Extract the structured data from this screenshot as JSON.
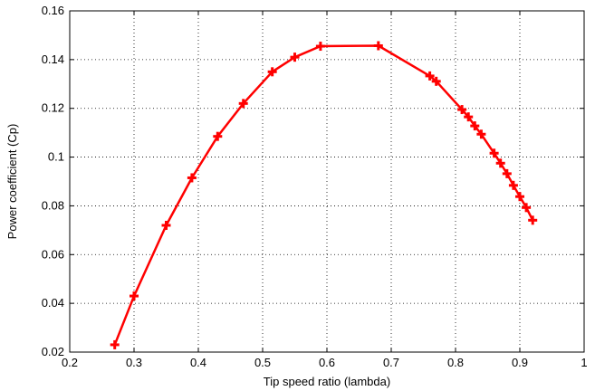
{
  "chart_data": {
    "type": "line",
    "xlabel": "Tip speed ratio  (lambda)",
    "ylabel": "Power coefficient  (Cp)",
    "xlim": [
      0.2,
      1
    ],
    "ylim": [
      0.02,
      0.16
    ],
    "xticks": [
      0.2,
      0.3,
      0.4,
      0.5,
      0.6,
      0.7,
      0.8,
      0.9,
      1
    ],
    "yticks": [
      0.02,
      0.04,
      0.06,
      0.08,
      0.1,
      0.12,
      0.14,
      0.16
    ],
    "xtick_labels": [
      "0.2",
      "0.3",
      "0.4",
      "0.5",
      "0.6",
      "0.7",
      "0.8",
      "0.9",
      "1"
    ],
    "ytick_labels": [
      "0.02",
      "0.04",
      "0.06",
      "0.08",
      "0.1",
      "0.12",
      "0.14",
      "0.16"
    ],
    "grid": true,
    "series": [
      {
        "color": "#ff0000",
        "marker": "plus",
        "x": [
          0.27,
          0.3,
          0.35,
          0.39,
          0.43,
          0.47,
          0.515,
          0.55,
          0.59,
          0.68,
          0.76,
          0.77,
          0.81,
          0.82,
          0.83,
          0.84,
          0.86,
          0.87,
          0.88,
          0.89,
          0.9,
          0.91,
          0.92
        ],
        "y": [
          0.023,
          0.043,
          0.072,
          0.0915,
          0.1085,
          0.122,
          0.135,
          0.141,
          0.1455,
          0.1457,
          0.1333,
          0.1311,
          0.1195,
          0.1165,
          0.1128,
          0.1094,
          0.1016,
          0.0975,
          0.0932,
          0.0884,
          0.0838,
          0.0793,
          0.0741
        ]
      }
    ]
  }
}
